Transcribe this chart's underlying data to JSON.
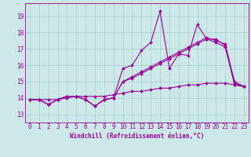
{
  "title": "",
  "xlabel": "Windchill (Refroidissement éolien,°C)",
  "ylabel": "",
  "bg_color": "#cce8e8",
  "line_color": "#990099",
  "grid_color": "#aacccc",
  "x_ticks": [
    0,
    1,
    2,
    3,
    4,
    5,
    6,
    7,
    8,
    9,
    10,
    11,
    12,
    13,
    14,
    15,
    16,
    17,
    18,
    19,
    20,
    21,
    22,
    23
  ],
  "y_ticks": [
    13,
    14,
    15,
    16,
    17,
    18,
    19
  ],
  "xlim": [
    -0.5,
    23.5
  ],
  "ylim": [
    12.5,
    19.8
  ],
  "series": [
    [
      13.9,
      13.9,
      13.6,
      13.9,
      14.1,
      14.1,
      13.9,
      13.5,
      13.9,
      14.0,
      15.8,
      16.0,
      16.9,
      17.4,
      19.3,
      15.8,
      16.7,
      16.6,
      18.5,
      17.6,
      17.6,
      17.2,
      14.8,
      14.7
    ],
    [
      13.9,
      13.9,
      13.6,
      13.9,
      14.1,
      14.1,
      13.9,
      13.5,
      13.9,
      14.0,
      15.0,
      15.3,
      15.6,
      15.9,
      16.2,
      16.5,
      16.8,
      17.1,
      17.4,
      17.7,
      17.5,
      17.3,
      15.0,
      14.7
    ],
    [
      13.9,
      13.9,
      13.6,
      13.9,
      14.1,
      14.1,
      13.9,
      13.5,
      13.9,
      14.0,
      15.0,
      15.2,
      15.5,
      15.8,
      16.1,
      16.4,
      16.7,
      17.0,
      17.3,
      17.6,
      17.4,
      17.1,
      14.9,
      14.7
    ],
    [
      13.9,
      13.9,
      13.9,
      13.9,
      14.0,
      14.1,
      14.1,
      14.1,
      14.1,
      14.2,
      14.3,
      14.4,
      14.4,
      14.5,
      14.6,
      14.6,
      14.7,
      14.8,
      14.8,
      14.9,
      14.9,
      14.9,
      14.8,
      14.7
    ]
  ],
  "tick_fontsize": 5.5,
  "xlabel_fontsize": 5.5,
  "marker_size": 2.0,
  "linewidth": 0.8
}
